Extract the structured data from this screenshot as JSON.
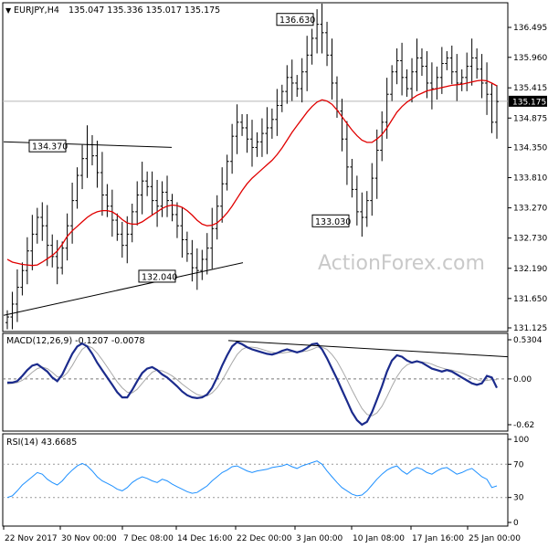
{
  "chart_data": [
    {
      "type": "candlestick",
      "symbol_header": "EURJPY,H4",
      "ohlc_header": "135.047 135.336 135.017 135.175",
      "y_ticks": [
        "136.495",
        "135.960",
        "135.415",
        "134.875",
        "134.350",
        "133.810",
        "133.270",
        "132.730",
        "132.190",
        "131.650",
        "131.125"
      ],
      "ylim": [
        131.0,
        137.0
      ],
      "current_price_label": "135.175",
      "current_price": 135.175,
      "annotations": [
        {
          "label": "136.630",
          "value": 136.63
        },
        {
          "label": "134.370",
          "value": 134.37
        },
        {
          "label": "133.030",
          "value": 133.03
        },
        {
          "label": "132.040",
          "value": 132.04
        }
      ],
      "watermark": "ActionForex.com",
      "close_series": [
        131.32,
        131.55,
        131.85,
        132.15,
        132.5,
        132.8,
        133.1,
        132.95,
        132.6,
        132.4,
        132.2,
        132.55,
        132.95,
        133.4,
        133.85,
        134.15,
        134.4,
        134.2,
        133.9,
        133.5,
        133.3,
        133.05,
        132.8,
        132.6,
        132.8,
        133.2,
        133.5,
        133.75,
        133.65,
        133.4,
        133.3,
        133.55,
        133.4,
        133.15,
        132.95,
        132.7,
        132.45,
        132.2,
        132.15,
        132.35,
        132.55,
        132.9,
        133.3,
        133.7,
        134.1,
        134.55,
        134.8,
        134.7,
        134.5,
        134.35,
        134.45,
        134.6,
        134.7,
        134.85,
        135.1,
        135.35,
        135.6,
        135.5,
        135.4,
        135.7,
        136.0,
        136.3,
        136.55,
        136.4,
        136.0,
        135.5,
        135.0,
        134.5,
        134.0,
        133.6,
        133.2,
        133.1,
        133.4,
        133.8,
        134.3,
        134.8,
        135.3,
        135.7,
        135.9,
        135.6,
        135.4,
        135.7,
        135.95,
        135.8,
        135.5,
        135.4,
        135.6,
        135.85,
        135.95,
        135.7,
        135.5,
        135.6,
        135.8,
        135.95,
        135.75,
        135.5,
        135.3,
        134.8,
        135.17
      ],
      "moving_average_series": [
        132.35,
        132.3,
        132.28,
        132.26,
        132.25,
        132.24,
        132.25,
        132.3,
        132.36,
        132.42,
        132.5,
        132.62,
        132.76,
        132.86,
        132.94,
        133.02,
        133.1,
        133.16,
        133.2,
        133.22,
        133.22,
        133.2,
        133.14,
        133.06,
        133.0,
        132.98,
        132.98,
        133.02,
        133.08,
        133.14,
        133.2,
        133.26,
        133.3,
        133.32,
        133.31,
        133.28,
        133.22,
        133.14,
        133.05,
        132.98,
        132.95,
        132.96,
        133.0,
        133.08,
        133.18,
        133.3,
        133.44,
        133.58,
        133.7,
        133.8,
        133.88,
        133.96,
        134.04,
        134.12,
        134.22,
        134.34,
        134.48,
        134.62,
        134.74,
        134.86,
        134.98,
        135.08,
        135.16,
        135.2,
        135.18,
        135.12,
        135.02,
        134.9,
        134.78,
        134.66,
        134.56,
        134.48,
        134.44,
        134.44,
        134.5,
        134.58,
        134.7,
        134.84,
        134.98,
        135.08,
        135.16,
        135.22,
        135.28,
        135.32,
        135.36,
        135.38,
        135.4,
        135.42,
        135.44,
        135.46,
        135.47,
        135.48,
        135.5,
        135.52,
        135.54,
        135.55,
        135.54,
        135.5,
        135.45
      ]
    },
    {
      "type": "line",
      "label": "MACD(12,26,9) -0.1207 -0.0078",
      "y_ticks": [
        "0.5304",
        "0.00",
        "-0.62"
      ],
      "ylim": [
        -0.62,
        0.5304
      ],
      "series": [
        {
          "name": "MACD",
          "color": "#1b2b8c",
          "values": [
            -0.05,
            -0.05,
            -0.03,
            0.04,
            0.12,
            0.18,
            0.2,
            0.15,
            0.1,
            0.02,
            -0.03,
            0.06,
            0.2,
            0.34,
            0.44,
            0.48,
            0.44,
            0.34,
            0.22,
            0.12,
            0.02,
            -0.08,
            -0.18,
            -0.25,
            -0.25,
            -0.15,
            -0.03,
            0.08,
            0.14,
            0.16,
            0.12,
            0.06,
            0.02,
            -0.04,
            -0.1,
            -0.17,
            -0.22,
            -0.25,
            -0.26,
            -0.25,
            -0.21,
            -0.12,
            0.02,
            0.18,
            0.32,
            0.44,
            0.5,
            0.47,
            0.43,
            0.4,
            0.38,
            0.36,
            0.34,
            0.33,
            0.35,
            0.38,
            0.4,
            0.38,
            0.36,
            0.38,
            0.42,
            0.47,
            0.48,
            0.4,
            0.28,
            0.14,
            0.0,
            -0.15,
            -0.3,
            -0.45,
            -0.56,
            -0.62,
            -0.58,
            -0.45,
            -0.28,
            -0.1,
            0.1,
            0.25,
            0.32,
            0.3,
            0.25,
            0.22,
            0.24,
            0.22,
            0.18,
            0.14,
            0.12,
            0.1,
            0.12,
            0.1,
            0.06,
            0.02,
            -0.02,
            -0.06,
            -0.08,
            -0.06,
            0.04,
            0.02,
            -0.12
          ]
        },
        {
          "name": "Signal",
          "color": "#a8a8a8",
          "values": [
            -0.07,
            -0.06,
            -0.05,
            -0.02,
            0.03,
            0.09,
            0.14,
            0.16,
            0.14,
            0.09,
            0.03,
            0.02,
            0.08,
            0.18,
            0.3,
            0.4,
            0.45,
            0.42,
            0.35,
            0.26,
            0.16,
            0.06,
            -0.04,
            -0.12,
            -0.18,
            -0.19,
            -0.14,
            -0.06,
            0.02,
            0.09,
            0.12,
            0.11,
            0.08,
            0.04,
            -0.01,
            -0.07,
            -0.12,
            -0.17,
            -0.21,
            -0.23,
            -0.23,
            -0.19,
            -0.12,
            -0.02,
            0.1,
            0.22,
            0.33,
            0.4,
            0.43,
            0.43,
            0.42,
            0.4,
            0.38,
            0.36,
            0.35,
            0.35,
            0.36,
            0.37,
            0.37,
            0.37,
            0.38,
            0.4,
            0.43,
            0.43,
            0.4,
            0.33,
            0.24,
            0.12,
            -0.01,
            -0.15,
            -0.28,
            -0.4,
            -0.48,
            -0.5,
            -0.46,
            -0.37,
            -0.24,
            -0.1,
            0.03,
            0.13,
            0.19,
            0.22,
            0.23,
            0.23,
            0.22,
            0.2,
            0.17,
            0.15,
            0.13,
            0.12,
            0.1,
            0.08,
            0.05,
            0.02,
            -0.01,
            -0.03,
            -0.02,
            -0.01,
            -0.01
          ]
        }
      ]
    },
    {
      "type": "line",
      "label": "RSI(14) 43.6685",
      "y_ticks": [
        "100",
        "70",
        "30",
        "0"
      ],
      "ylim": [
        0,
        100
      ],
      "series": [
        {
          "name": "RSI",
          "color": "#1e90ff",
          "values": [
            30,
            32,
            38,
            45,
            50,
            55,
            60,
            58,
            52,
            48,
            45,
            50,
            57,
            63,
            68,
            71,
            68,
            62,
            55,
            50,
            47,
            44,
            40,
            38,
            42,
            48,
            52,
            55,
            53,
            50,
            48,
            52,
            50,
            46,
            43,
            40,
            37,
            35,
            36,
            40,
            44,
            50,
            55,
            60,
            63,
            67,
            68,
            65,
            62,
            60,
            62,
            63,
            64,
            66,
            67,
            68,
            70,
            67,
            65,
            68,
            70,
            72,
            74,
            70,
            62,
            55,
            48,
            42,
            38,
            34,
            32,
            33,
            38,
            45,
            52,
            58,
            63,
            66,
            68,
            62,
            58,
            63,
            66,
            64,
            60,
            58,
            62,
            65,
            66,
            62,
            58,
            60,
            63,
            65,
            60,
            55,
            52,
            42,
            44
          ]
        }
      ]
    }
  ],
  "x_labels": [
    "22 Nov 2017",
    "30 Nov 00:00",
    "7 Dec 08:00",
    "14 Dec 16:00",
    "22 Dec 00:00",
    "3 Jan 00:00",
    "10 Jan 08:00",
    "17 Jan 16:00",
    "25 Jan 00:00"
  ]
}
